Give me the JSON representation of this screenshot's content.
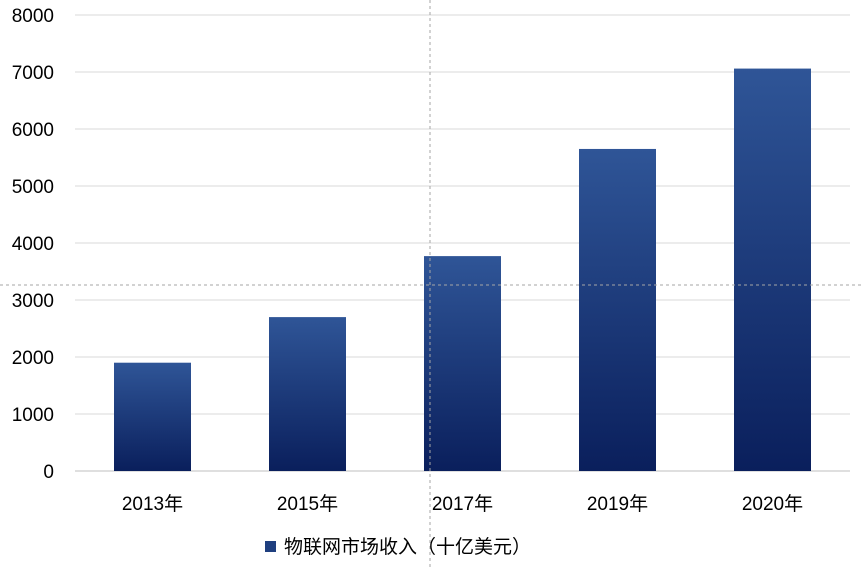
{
  "chart_data": {
    "type": "bar",
    "categories": [
      "2013年",
      "2015年",
      "2017年",
      "2019年",
      "2020年"
    ],
    "series": [
      {
        "name": "物联网市场收入（十亿美元）",
        "values": [
          1900,
          2700,
          3770,
          5650,
          7060
        ]
      }
    ],
    "ylim": [
      0,
      8000
    ],
    "yticks": [
      0,
      1000,
      2000,
      3000,
      4000,
      5000,
      6000,
      7000,
      8000
    ],
    "grid": true,
    "legend_position": "bottom",
    "colors": {
      "bar_top": "#2F5597",
      "bar_bottom": "#0A1F5C",
      "legend_swatch": "#1F3F7F",
      "grid": "#D9D9D9"
    }
  }
}
